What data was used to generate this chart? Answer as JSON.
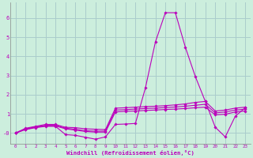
{
  "xlabel": "Windchill (Refroidissement éolien,°C)",
  "background_color": "#cceedd",
  "grid_color": "#aacccc",
  "line_color": "#bb00bb",
  "xlim": [
    -0.5,
    23.5
  ],
  "ylim": [
    -0.55,
    6.8
  ],
  "xticks": [
    0,
    1,
    2,
    3,
    4,
    5,
    6,
    7,
    8,
    9,
    10,
    11,
    12,
    13,
    14,
    15,
    16,
    17,
    18,
    19,
    20,
    21,
    22,
    23
  ],
  "yticks": [
    0,
    1,
    2,
    3,
    4,
    5,
    6
  ],
  "ytick_labels": [
    "-0",
    "1",
    "2",
    "3",
    "4",
    "5",
    "6"
  ],
  "lines": [
    [
      0.0,
      0.25,
      0.35,
      0.45,
      0.45,
      0.3,
      0.28,
      0.22,
      0.2,
      0.18,
      1.3,
      1.32,
      1.35,
      1.38,
      1.4,
      1.43,
      1.47,
      1.52,
      1.6,
      1.65,
      1.15,
      1.2,
      1.3,
      1.35
    ],
    [
      0.0,
      0.22,
      0.32,
      0.4,
      0.4,
      0.25,
      0.2,
      0.12,
      0.1,
      0.1,
      1.2,
      1.22,
      1.25,
      1.28,
      1.3,
      1.33,
      1.36,
      1.4,
      1.45,
      1.5,
      1.05,
      1.1,
      1.2,
      1.25
    ],
    [
      0.0,
      0.2,
      0.3,
      0.38,
      0.37,
      0.22,
      0.15,
      0.08,
      0.05,
      0.05,
      1.1,
      1.13,
      1.15,
      1.18,
      1.2,
      1.23,
      1.25,
      1.28,
      1.32,
      1.35,
      0.95,
      0.98,
      1.1,
      1.15
    ],
    [
      0.0,
      0.18,
      0.28,
      0.35,
      0.35,
      -0.08,
      -0.12,
      -0.22,
      -0.32,
      -0.2,
      0.45,
      0.47,
      0.5,
      2.35,
      4.75,
      6.28,
      6.28,
      4.48,
      2.95,
      1.65,
      0.3,
      -0.2,
      0.88,
      1.32
    ]
  ]
}
